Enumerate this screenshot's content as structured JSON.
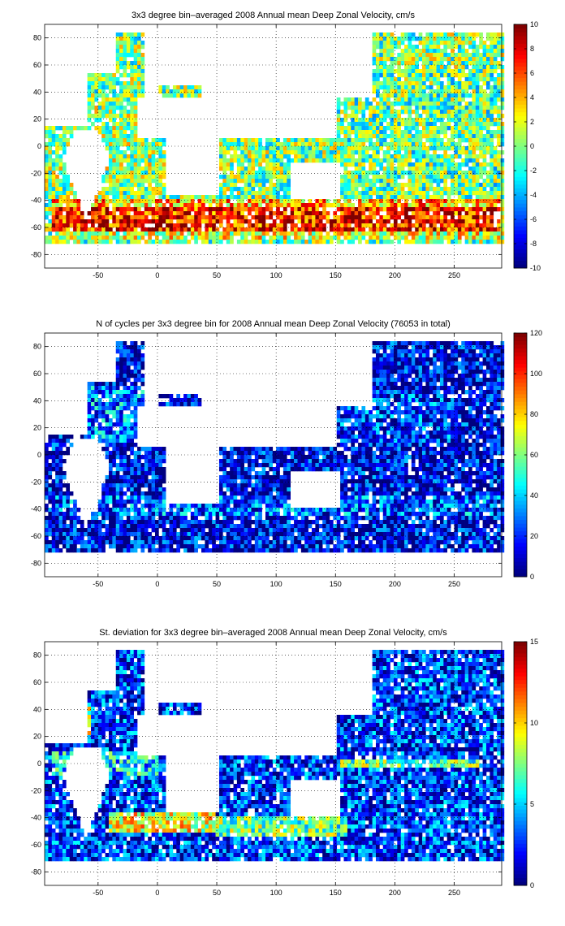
{
  "chart_data": [
    {
      "type": "heatmap",
      "title": "3x3 degree bin–averaged 2008 Annual mean Deep Zonal Velocity, cm/s",
      "xlim": [
        -95,
        290
      ],
      "ylim": [
        -90,
        90
      ],
      "xticks": [
        -50,
        0,
        50,
        100,
        150,
        200,
        250
      ],
      "xtick_labels": [
        "-50",
        "0",
        "50",
        "100",
        "150",
        "200",
        "250"
      ],
      "yticks": [
        80,
        60,
        40,
        20,
        0,
        -20,
        -40,
        -60,
        -80
      ],
      "ytick_labels": [
        "80",
        "60",
        "40",
        "20",
        "0",
        "-20",
        "-40",
        "-60",
        "-80"
      ],
      "grid": true,
      "colormap": "jet",
      "clim": [
        -10,
        10
      ],
      "colorbar_ticks": [
        10,
        8,
        6,
        4,
        2,
        0,
        -2,
        -4,
        -6,
        -8,
        -10
      ],
      "colorbar_tick_labels": [
        "10",
        "8",
        "6",
        "4",
        "2",
        "0",
        "-2",
        "-4",
        "-6",
        "-8",
        "-10"
      ],
      "bin_size_deg": 3,
      "background_value": 0,
      "region_means": [
        {
          "lon": [
            -90,
            0
          ],
          "lat": [
            -30,
            40
          ],
          "value": 0.5
        },
        {
          "lon": [
            150,
            290
          ],
          "lat": [
            -40,
            55
          ],
          "value": -0.5
        },
        {
          "lon": [
            -90,
            290
          ],
          "lat": [
            -63,
            -45
          ],
          "value": 7
        },
        {
          "lon": [
            -90,
            290
          ],
          "lat": [
            -45,
            -38
          ],
          "value": 4
        },
        {
          "lon": [
            -90,
            290
          ],
          "lat": [
            -70,
            -63
          ],
          "value": 2
        }
      ]
    },
    {
      "type": "heatmap",
      "title": "N of cycles per 3x3 degree bin for 2008 Annual mean Deep Zonal Velocity (76053 in total)",
      "xlim": [
        -95,
        290
      ],
      "ylim": [
        -90,
        90
      ],
      "xticks": [
        -50,
        0,
        50,
        100,
        150,
        200,
        250
      ],
      "xtick_labels": [
        "-50",
        "0",
        "50",
        "100",
        "150",
        "200",
        "250"
      ],
      "yticks": [
        80,
        60,
        40,
        20,
        0,
        -20,
        -40,
        -60,
        -80
      ],
      "ytick_labels": [
        "80",
        "60",
        "40",
        "20",
        "0",
        "-20",
        "-40",
        "-60",
        "-80"
      ],
      "grid": true,
      "colormap": "jet",
      "clim": [
        0,
        120
      ],
      "colorbar_ticks": [
        120,
        100,
        80,
        60,
        40,
        20,
        0
      ],
      "colorbar_tick_labels": [
        "120",
        "100",
        "80",
        "60",
        "40",
        "20",
        "0"
      ],
      "bin_size_deg": 3,
      "total_cycles": 76053,
      "background_value": 12,
      "region_means": [
        {
          "lon": [
            -60,
            -10
          ],
          "lat": [
            10,
            50
          ],
          "value": 30
        },
        {
          "lon": [
            -90,
            290
          ],
          "lat": [
            -45,
            -30
          ],
          "value": 25
        },
        {
          "lon": [
            140,
            250
          ],
          "lat": [
            10,
            45
          ],
          "value": 20
        }
      ]
    },
    {
      "type": "heatmap",
      "title": "St. deviation for 3x3 degree bin–averaged 2008 Annual mean Deep Zonal Velocity, cm/s",
      "xlim": [
        -95,
        290
      ],
      "ylim": [
        -90,
        90
      ],
      "xticks": [
        -50,
        0,
        50,
        100,
        150,
        200,
        250
      ],
      "xtick_labels": [
        "-50",
        "0",
        "50",
        "100",
        "150",
        "200",
        "250"
      ],
      "yticks": [
        80,
        60,
        40,
        20,
        0,
        -20,
        -40,
        -60,
        -80
      ],
      "ytick_labels": [
        "80",
        "60",
        "40",
        "20",
        "0",
        "-20",
        "-40",
        "-60",
        "-80"
      ],
      "grid": true,
      "colormap": "jet",
      "clim": [
        0,
        15
      ],
      "colorbar_ticks": [
        15,
        10,
        5,
        0
      ],
      "colorbar_tick_labels": [
        "15",
        "10",
        "5",
        "0"
      ],
      "bin_size_deg": 3,
      "background_value": 2.5,
      "region_means": [
        {
          "lon": [
            -80,
            -55
          ],
          "lat": [
            20,
            45
          ],
          "value": 8
        },
        {
          "lon": [
            -40,
            50
          ],
          "lat": [
            -50,
            -35
          ],
          "value": 9
        },
        {
          "lon": [
            50,
            160
          ],
          "lat": [
            -55,
            -40
          ],
          "value": 7
        },
        {
          "lon": [
            150,
            275
          ],
          "lat": [
            -2,
            4
          ],
          "value": 7
        },
        {
          "lon": [
            -90,
            0
          ],
          "lat": [
            -10,
            10
          ],
          "value": 5
        }
      ]
    }
  ]
}
